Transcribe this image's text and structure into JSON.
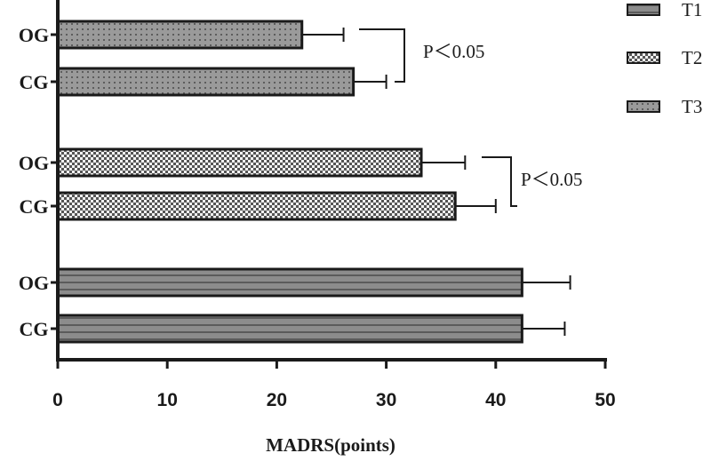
{
  "chart_data": {
    "type": "bar",
    "orientation": "horizontal",
    "xlabel": "MADRS(points)",
    "xlim": [
      0,
      50
    ],
    "xticks": [
      0,
      10,
      20,
      30,
      40,
      50
    ],
    "categories": [
      "OG",
      "CG"
    ],
    "legend_position": "top-right",
    "grid": false,
    "series": [
      {
        "name": "T1",
        "pattern": "horizontal-stripes",
        "color": "#8c8c8c",
        "values": [
          42.4,
          42.4
        ],
        "errors": [
          4.4,
          3.9
        ]
      },
      {
        "name": "T2",
        "pattern": "checker",
        "color": "#8c8c8c",
        "values": [
          33.2,
          36.3
        ],
        "errors": [
          4.0,
          3.7
        ]
      },
      {
        "name": "T3",
        "pattern": "dots",
        "color": "#9a9a9a",
        "values": [
          22.3,
          27.0
        ],
        "errors": [
          3.8,
          3.0
        ]
      }
    ],
    "annotations": [
      {
        "text": "P＜0.05",
        "series": "T3"
      },
      {
        "text": "P＜0.05",
        "series": "T2"
      }
    ]
  }
}
